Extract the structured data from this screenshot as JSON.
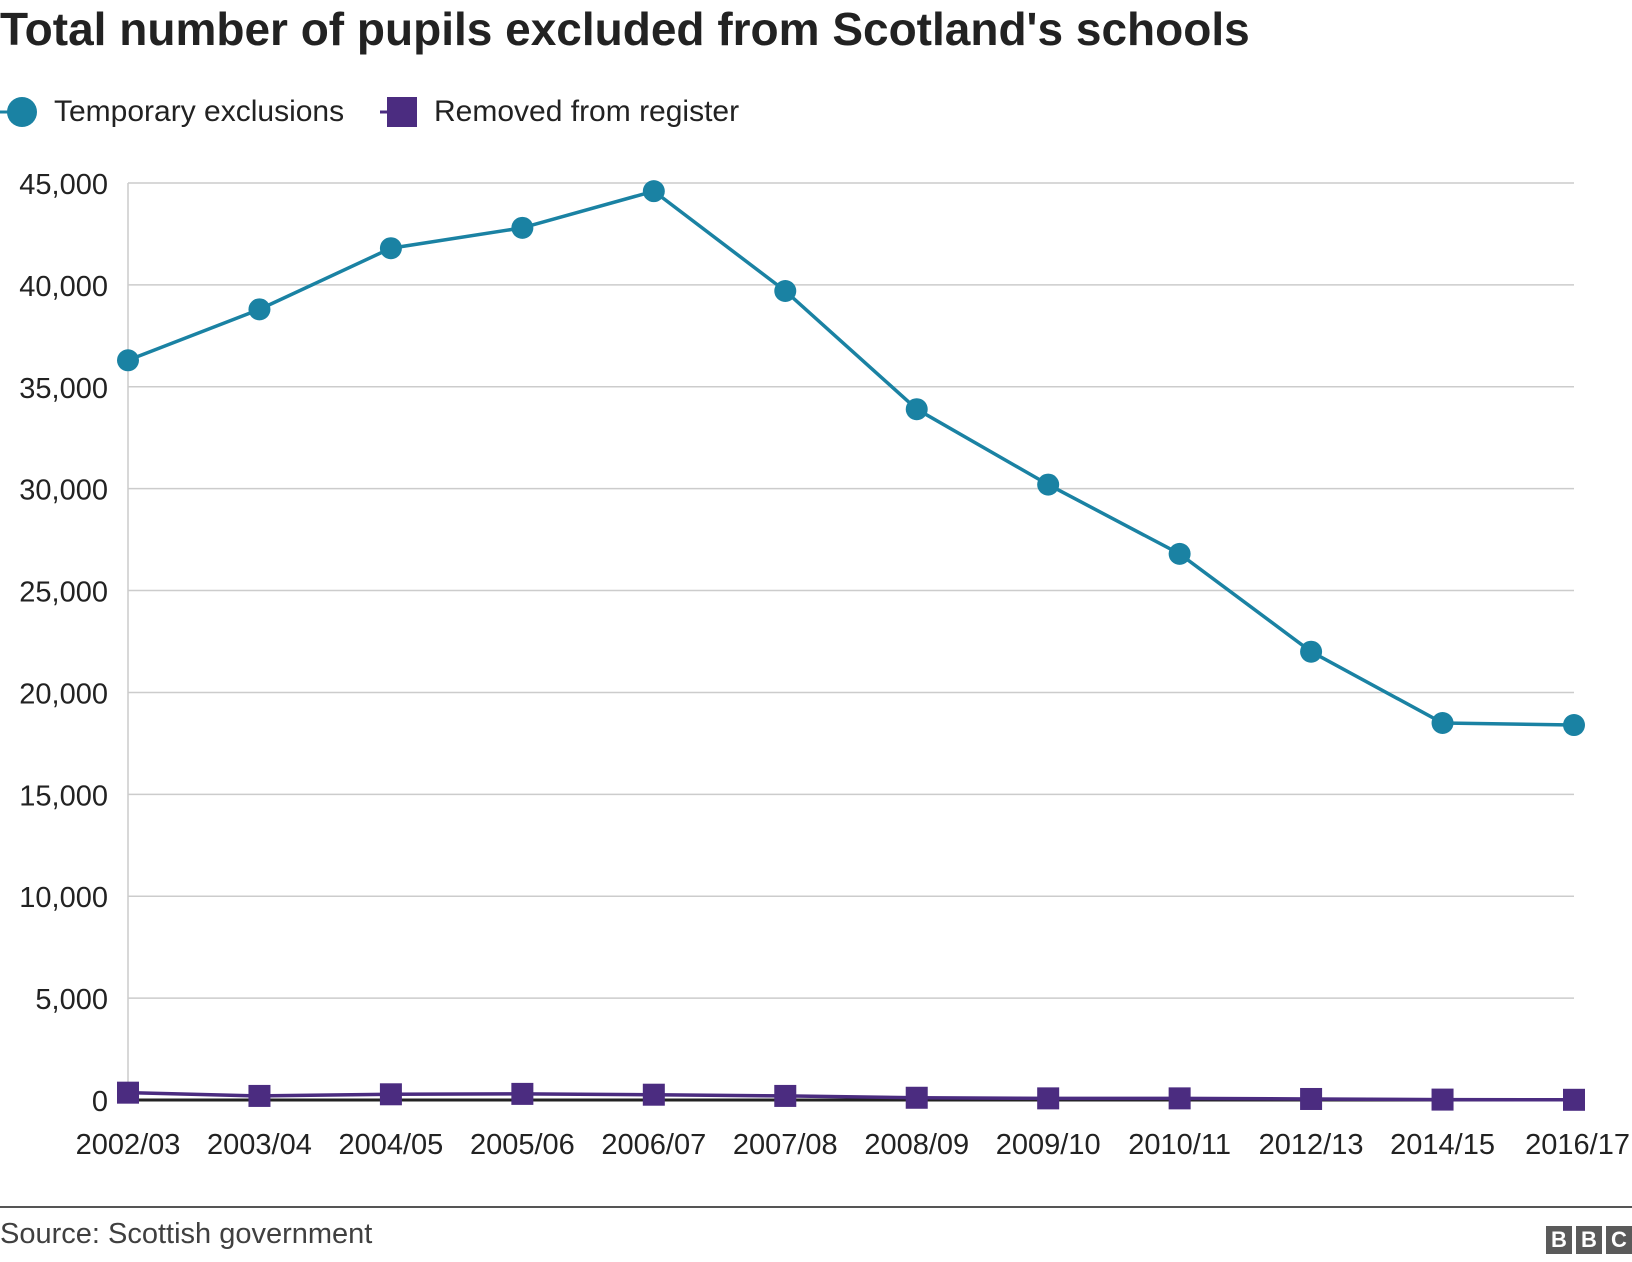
{
  "chart_data": {
    "type": "line",
    "title": "Total number of pupils excluded from Scotland's schools",
    "categories": [
      "2002/03",
      "2003/04",
      "2004/05",
      "2005/06",
      "2006/07",
      "2007/08",
      "2008/09",
      "2009/10",
      "2010/11",
      "2012/13",
      "2014/15",
      "2016/17"
    ],
    "series": [
      {
        "name": "Temporary exclusions",
        "color": "#1a82a3",
        "marker": "circle",
        "values": [
          36300,
          38800,
          41800,
          42800,
          44600,
          39700,
          33900,
          30200,
          26800,
          22000,
          18500,
          18400
        ]
      },
      {
        "name": "Removed from register",
        "color": "#4b2c80",
        "marker": "square",
        "values": [
          360,
          200,
          280,
          300,
          260,
          200,
          110,
          80,
          80,
          50,
          20,
          10
        ]
      }
    ],
    "y_ticks": [
      "45,000",
      "40,000",
      "35,000",
      "30,000",
      "25,000",
      "20,000",
      "15,000",
      "10,000",
      "5,000",
      "0"
    ],
    "ylim": [
      0,
      45000
    ],
    "grid": true,
    "legend_position": "top-left"
  },
  "source": "Source: Scottish government",
  "brand": [
    "B",
    "B",
    "C"
  ]
}
